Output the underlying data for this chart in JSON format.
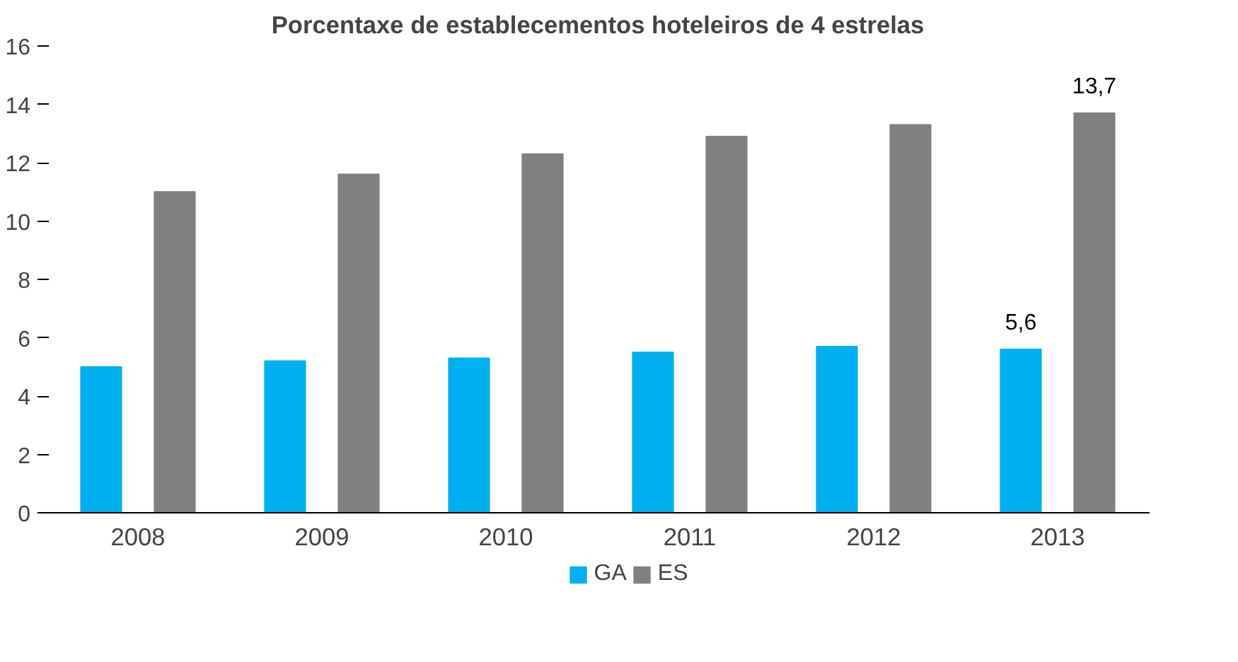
{
  "chart_data": {
    "type": "bar",
    "title": "Porcentaxe de establecementos hoteleiros de 4 estrelas",
    "categories": [
      "2008",
      "2009",
      "2010",
      "2011",
      "2012",
      "2013"
    ],
    "series": [
      {
        "name": "GA",
        "color": "#00b0f0",
        "values": [
          5.0,
          5.2,
          5.3,
          5.5,
          5.7,
          5.6
        ],
        "value_labels": [
          null,
          null,
          null,
          null,
          null,
          "5,6"
        ]
      },
      {
        "name": "ES",
        "color": "#808080",
        "values": [
          11.0,
          11.6,
          12.3,
          12.9,
          13.3,
          13.7
        ],
        "value_labels": [
          null,
          null,
          null,
          null,
          null,
          "13,7"
        ]
      }
    ],
    "ylim": [
      0,
      16
    ],
    "yticks": [
      0,
      2,
      4,
      6,
      8,
      10,
      12,
      14,
      16
    ],
    "grid": false,
    "legend": "bottom"
  }
}
